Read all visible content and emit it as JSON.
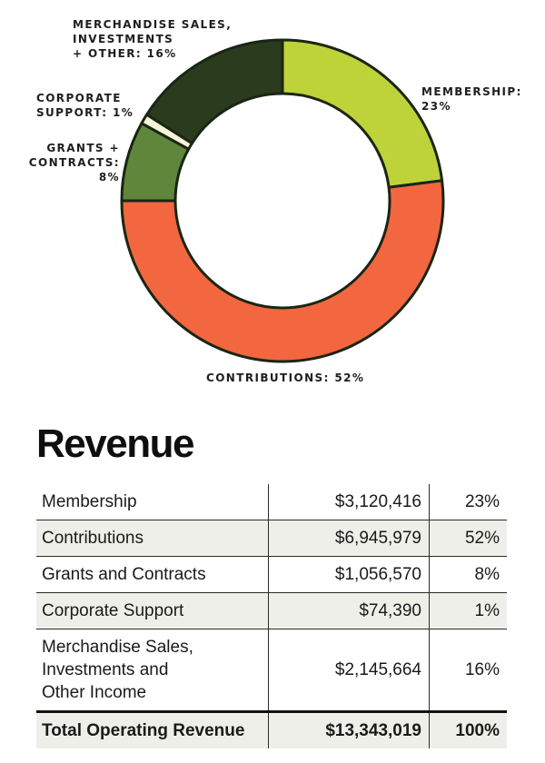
{
  "chart_data": {
    "type": "pie",
    "style": "donut",
    "slices": [
      {
        "name": "Membership",
        "label": "MEMBERSHIP:\n23%",
        "value": 23,
        "color": "#bdd339"
      },
      {
        "name": "Contributions",
        "label": "CONTRIBUTIONS: 52%",
        "value": 52,
        "color": "#f26640"
      },
      {
        "name": "Grants + Contracts",
        "label": "GRANTS +\nCONTRACTS:\n8%",
        "value": 8,
        "color": "#5f873b"
      },
      {
        "name": "Corporate Support",
        "label": "CORPORATE\nSUPPORT: 1%",
        "value": 1,
        "color": "#f6f3d9"
      },
      {
        "name": "Merchandise Sales, Investments + Other",
        "label": "MERCHANDISE SALES,\nINVESTMENTS\n+ OTHER: 16%",
        "value": 16,
        "color": "#2b3b1e"
      }
    ],
    "outline_color": "#1a2614"
  },
  "table": {
    "title": "Revenue",
    "rows": [
      {
        "name": "Membership",
        "amount": "$3,120,416",
        "pct": "23%"
      },
      {
        "name": "Contributions",
        "amount": "$6,945,979",
        "pct": "52%"
      },
      {
        "name": "Grants and Contracts",
        "amount": "$1,056,570",
        "pct": "8%"
      },
      {
        "name": "Corporate Support",
        "amount": "$74,390",
        "pct": "1%"
      },
      {
        "name": "Merchandise Sales,\nInvestments and\nOther Income",
        "amount": "$2,145,664",
        "pct": "16%"
      }
    ],
    "total": {
      "name": "Total Operating Revenue",
      "amount": "$13,343,019",
      "pct": "100%"
    }
  }
}
